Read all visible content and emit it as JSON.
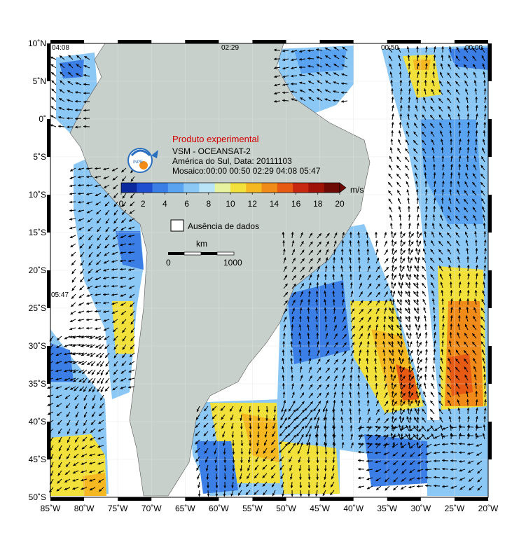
{
  "header": {
    "title": "Produto experimental",
    "line1": "VSM - OCEANSAT-2",
    "line2": "América do Sul, Data: 20111103",
    "line3": "Mosaico:00:00 00:50 02:29 04:08 05:47",
    "logo_text": "INPE"
  },
  "colorbar": {
    "unit": "m/s",
    "ticks": [
      "0",
      "2",
      "4",
      "6",
      "8",
      "10",
      "12",
      "14",
      "16",
      "18",
      "20"
    ],
    "colors": [
      "#0a2a9e",
      "#1f4fd1",
      "#3b7fe6",
      "#5aa3f0",
      "#8cc8f5",
      "#b9e4f7",
      "#e8f3a0",
      "#f2e13a",
      "#f6b820",
      "#f08a18",
      "#e65a14",
      "#c82810",
      "#9e1208",
      "#6e0a05"
    ]
  },
  "legend": {
    "no_data": "Ausência de dados"
  },
  "scale": {
    "unit": "km",
    "min": "0",
    "max": "1000"
  },
  "axes": {
    "lat_labels": [
      "10˚N",
      "5˚N",
      "0˚",
      "5˚S",
      "10˚S",
      "15˚S",
      "20˚S",
      "25˚S",
      "30˚S",
      "35˚S",
      "40˚S",
      "45˚S",
      "50˚S"
    ],
    "lon_labels": [
      "85˚W",
      "80˚W",
      "75˚W",
      "70˚W",
      "65˚W",
      "60˚W",
      "55˚W",
      "50˚W",
      "45˚W",
      "40˚W",
      "35˚W",
      "30˚W",
      "25˚W",
      "20˚W"
    ]
  },
  "swath_times": [
    "04:08",
    "02:29",
    "00:50",
    "00:00",
    "05:47"
  ],
  "colors": {
    "land": "#c8d0cc",
    "ocean_bg": "#ffffff",
    "arrow": "#000000"
  }
}
